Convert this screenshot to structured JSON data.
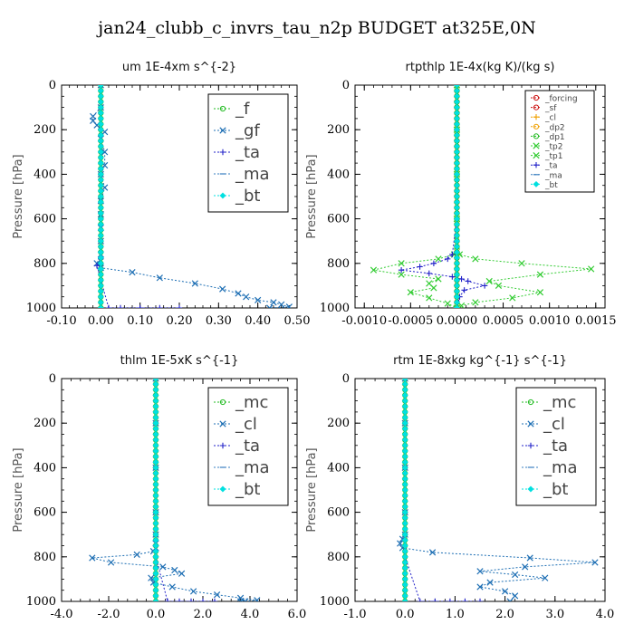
{
  "title": "jan24_clubb_c_invrs_tau_n2p  BUDGET at325E,0N",
  "colors": {
    "green": "#22bb22",
    "blue": "#1e6fb4",
    "dblue": "#2020c8",
    "cyan": "#00e0e0",
    "red": "#cc1111",
    "orange": "#f0a000",
    "lgreen": "#33cc33",
    "steel": "#3a7fc0"
  },
  "chart_data": [
    {
      "type": "line",
      "title": "um   1E-4xm s^{-2}",
      "ylabel": "Pressure [hPa]",
      "xlim": [
        -0.1,
        0.5
      ],
      "ylim": [
        1000,
        0
      ],
      "xticks": [
        "-0.10",
        "0.00",
        "0.10",
        "0.20",
        "0.30",
        "0.40",
        "0.50"
      ],
      "xtick_values": [
        -0.1,
        0,
        0.1,
        0.2,
        0.3,
        0.4,
        0.5
      ],
      "yticks": [
        "0",
        "200",
        "400",
        "600",
        "800",
        "1000"
      ],
      "ytick_values": [
        0,
        200,
        400,
        600,
        800,
        1000
      ],
      "legend_placement": "top-right",
      "legend_size": "large",
      "series": [
        {
          "name": "_f",
          "color": "green",
          "marker": "circle",
          "x": [
            0,
            0,
            0,
            0,
            0,
            0,
            0,
            0,
            0,
            0,
            0
          ],
          "y": [
            0,
            100,
            200,
            300,
            400,
            500,
            600,
            700,
            800,
            900,
            1000
          ]
        },
        {
          "name": "_gf",
          "color": "blue",
          "marker": "x",
          "x": [
            0,
            0,
            -0.02,
            -0.02,
            -0.01,
            0.01,
            0.0,
            0.01,
            0.01,
            0.0,
            0.01,
            0.0,
            0.0,
            0.0,
            0.0,
            0.0,
            -0.01,
            0.0,
            0.08,
            0.15,
            0.24,
            0.31,
            0.35,
            0.37,
            0.4,
            0.44,
            0.46,
            0.48,
            0.43
          ],
          "y": [
            0,
            100,
            140,
            160,
            180,
            210,
            240,
            300,
            360,
            400,
            460,
            520,
            580,
            640,
            700,
            760,
            800,
            820,
            840,
            865,
            890,
            915,
            935,
            950,
            965,
            975,
            985,
            995,
            1000
          ]
        },
        {
          "name": "_ta",
          "color": "dblue",
          "marker": "plus",
          "x": [
            0,
            0,
            0,
            0,
            0,
            0,
            -0.01,
            0.02,
            0.05,
            0.1,
            0.15,
            0.2
          ],
          "y": [
            0,
            200,
            400,
            600,
            780,
            800,
            810,
            1000,
            1000,
            1000,
            1000,
            1000
          ]
        },
        {
          "name": "_ma",
          "color": "steel",
          "marker": "dash",
          "x": [
            0,
            0,
            0,
            0,
            0,
            0
          ],
          "y": [
            0,
            200,
            400,
            600,
            800,
            1000
          ]
        },
        {
          "name": "_bt",
          "color": "cyan",
          "marker": "diamond",
          "x": [
            0,
            0,
            0,
            0,
            0,
            0,
            0,
            0,
            0,
            0,
            0
          ],
          "y": [
            0,
            100,
            200,
            300,
            400,
            500,
            600,
            700,
            800,
            900,
            1000
          ]
        }
      ]
    },
    {
      "type": "line",
      "title": "rtpthlp   1E-4x(kg K)/(kg s)",
      "ylabel": "Pressure [hPa]",
      "xlim": [
        -0.0011,
        0.0016
      ],
      "ylim": [
        1000,
        0
      ],
      "xticks": [
        "-0.0010",
        "-0.0005",
        "0.0000",
        "0.0005",
        "0.0010",
        "0.0015"
      ],
      "xtick_values": [
        -0.001,
        -0.0005,
        0,
        0.0005,
        0.001,
        0.0015
      ],
      "yticks": [
        "0",
        "200",
        "400",
        "600",
        "800",
        "1000"
      ],
      "ytick_values": [
        0,
        200,
        400,
        600,
        800,
        1000
      ],
      "legend_placement": "top-right",
      "legend_size": "small",
      "series": [
        {
          "name": "_forcing",
          "color": "red",
          "marker": "circle",
          "x": [
            0,
            0,
            0,
            0,
            0,
            0
          ],
          "y": [
            0,
            200,
            400,
            600,
            800,
            1000
          ]
        },
        {
          "name": "_sf",
          "color": "red",
          "marker": "circle",
          "x": [
            0,
            0,
            0,
            0,
            0,
            0
          ],
          "y": [
            0,
            200,
            400,
            600,
            800,
            1000
          ]
        },
        {
          "name": "_cl",
          "color": "orange",
          "marker": "plus",
          "x": [
            0,
            0,
            0,
            0,
            0,
            0
          ],
          "y": [
            0,
            200,
            400,
            600,
            800,
            1000
          ]
        },
        {
          "name": "_dp2",
          "color": "orange",
          "marker": "circle",
          "x": [
            0,
            0,
            0,
            0,
            0,
            0
          ],
          "y": [
            0,
            200,
            400,
            600,
            800,
            1000
          ]
        },
        {
          "name": "_dp1",
          "color": "green",
          "marker": "circle",
          "x": [
            0,
            0,
            0,
            0,
            0,
            0
          ],
          "y": [
            0,
            200,
            400,
            600,
            800,
            1000
          ]
        },
        {
          "name": "_tp2",
          "color": "lgreen",
          "marker": "x",
          "x": [
            0,
            0,
            0,
            0,
            3e-05,
            0.0002,
            0.0007,
            0.00145,
            0.0009,
            0.00035,
            0.00045,
            0.0009,
            0.0006,
            0.0002,
            5e-05,
            0
          ],
          "y": [
            0,
            200,
            400,
            600,
            760,
            780,
            800,
            825,
            850,
            880,
            900,
            930,
            955,
            975,
            990,
            1000
          ]
        },
        {
          "name": "_tp1",
          "color": "lgreen",
          "marker": "x",
          "x": [
            0,
            0,
            0,
            0,
            -3e-05,
            -0.0002,
            -0.0006,
            -0.0009,
            -0.0006,
            -0.0002,
            -0.0003,
            -0.00025,
            -0.0005,
            -0.0003,
            -0.0001,
            0
          ],
          "y": [
            0,
            200,
            400,
            600,
            760,
            780,
            800,
            830,
            850,
            870,
            890,
            910,
            930,
            955,
            980,
            1000
          ]
        },
        {
          "name": "_ta",
          "color": "dblue",
          "marker": "plus",
          "x": [
            0,
            0,
            0,
            0,
            -5e-05,
            -0.0001,
            -0.00025,
            -0.0004,
            -0.0006,
            -0.0003,
            -5e-05,
            5e-05,
            0.00012,
            0.0003,
            8e-05,
            3e-05,
            0
          ],
          "y": [
            0,
            200,
            400,
            600,
            760,
            780,
            800,
            815,
            830,
            845,
            860,
            870,
            880,
            900,
            920,
            950,
            1000
          ]
        },
        {
          "name": "_ma",
          "color": "steel",
          "marker": "dash",
          "x": [
            0,
            0,
            0,
            0,
            0,
            0
          ],
          "y": [
            0,
            200,
            400,
            600,
            800,
            1000
          ]
        },
        {
          "name": "_bt",
          "color": "cyan",
          "marker": "diamond",
          "x": [
            0,
            0,
            0,
            0,
            0,
            0
          ],
          "y": [
            0,
            200,
            400,
            600,
            800,
            1000
          ]
        }
      ]
    },
    {
      "type": "line",
      "title": "thlm   1E-5xK s^{-1}",
      "ylabel": "Pressure [hPa]",
      "xlim": [
        -4.0,
        6.0
      ],
      "ylim": [
        1000,
        0
      ],
      "xticks": [
        "-4.0",
        "-2.0",
        "0.0",
        "2.0",
        "4.0",
        "6.0"
      ],
      "xtick_values": [
        -4,
        -2,
        0,
        2,
        4,
        6
      ],
      "yticks": [
        "0",
        "200",
        "400",
        "600",
        "800",
        "1000"
      ],
      "ytick_values": [
        0,
        200,
        400,
        600,
        800,
        1000
      ],
      "legend_placement": "top-right",
      "legend_size": "large",
      "series": [
        {
          "name": "_mc",
          "color": "green",
          "marker": "circle",
          "x": [
            0,
            0,
            0,
            0,
            0,
            0,
            0,
            0,
            0,
            0,
            0
          ],
          "y": [
            0,
            100,
            200,
            300,
            400,
            500,
            600,
            700,
            800,
            900,
            1000
          ]
        },
        {
          "name": "_cl",
          "color": "blue",
          "marker": "x",
          "x": [
            0,
            0,
            0,
            0,
            0,
            0,
            0,
            -0.1,
            -0.8,
            -2.7,
            -1.9,
            0.3,
            0.8,
            1.1,
            -0.2,
            -0.1,
            0.7,
            1.6,
            2.6,
            3.6,
            4.3,
            3.8,
            3.6
          ],
          "y": [
            0,
            200,
            400,
            600,
            700,
            740,
            760,
            775,
            790,
            805,
            825,
            845,
            860,
            875,
            895,
            915,
            935,
            955,
            970,
            985,
            995,
            1000,
            1000
          ]
        },
        {
          "name": "_ta",
          "color": "dblue",
          "marker": "plus",
          "x": [
            0,
            0,
            0,
            0,
            0,
            0.5,
            1.0,
            1.5,
            2.0,
            2.5
          ],
          "y": [
            0,
            200,
            400,
            600,
            800,
            1000,
            1000,
            1000,
            1000,
            1000
          ]
        },
        {
          "name": "_ma",
          "color": "steel",
          "marker": "dash",
          "x": [
            0,
            0,
            0,
            0,
            0,
            0
          ],
          "y": [
            0,
            200,
            400,
            600,
            800,
            1000
          ]
        },
        {
          "name": "_bt",
          "color": "cyan",
          "marker": "diamond",
          "x": [
            0,
            0,
            0,
            0,
            0,
            0,
            0,
            0,
            0,
            0,
            0
          ],
          "y": [
            0,
            100,
            200,
            300,
            400,
            500,
            600,
            700,
            800,
            900,
            1000
          ]
        }
      ]
    },
    {
      "type": "line",
      "title": "rtm   1E-8xkg kg^{-1} s^{-1}",
      "ylabel": "Pressure [hPa]",
      "xlim": [
        -1.0,
        4.0
      ],
      "ylim": [
        1000,
        0
      ],
      "xticks": [
        "-1.0",
        "0.0",
        "1.0",
        "2.0",
        "3.0",
        "4.0"
      ],
      "xtick_values": [
        -1,
        0,
        1,
        2,
        3,
        4
      ],
      "yticks": [
        "0",
        "200",
        "400",
        "600",
        "800",
        "1000"
      ],
      "ytick_values": [
        0,
        200,
        400,
        600,
        800,
        1000
      ],
      "legend_placement": "top-right",
      "legend_size": "large",
      "series": [
        {
          "name": "_mc",
          "color": "green",
          "marker": "circle",
          "x": [
            0,
            0,
            0,
            0,
            0,
            0,
            0,
            0,
            0,
            0,
            0
          ],
          "y": [
            0,
            100,
            200,
            300,
            400,
            500,
            600,
            700,
            800,
            900,
            1000
          ]
        },
        {
          "name": "_cl",
          "color": "blue",
          "marker": "x",
          "x": [
            0,
            0,
            0,
            0,
            0,
            -0.05,
            -0.1,
            -0.05,
            0.55,
            2.5,
            3.8,
            2.4,
            1.5,
            2.2,
            2.8,
            1.7,
            1.5,
            2.0,
            2.2,
            2.1
          ],
          "y": [
            0,
            200,
            400,
            600,
            700,
            720,
            740,
            760,
            780,
            805,
            825,
            845,
            865,
            880,
            895,
            915,
            935,
            955,
            975,
            1000
          ]
        },
        {
          "name": "_ta",
          "color": "dblue",
          "marker": "plus",
          "x": [
            0,
            0,
            0,
            0,
            0,
            0.3,
            0.6,
            0.9,
            1.2,
            1.5
          ],
          "y": [
            0,
            200,
            400,
            600,
            800,
            1000,
            1000,
            1000,
            1000,
            1000
          ]
        },
        {
          "name": "_ma",
          "color": "steel",
          "marker": "dash",
          "x": [
            0,
            0,
            0,
            0,
            0,
            0
          ],
          "y": [
            0,
            200,
            400,
            600,
            800,
            1000
          ]
        },
        {
          "name": "_bt",
          "color": "cyan",
          "marker": "diamond",
          "x": [
            0,
            0,
            0,
            0,
            0,
            0,
            0,
            0,
            0,
            0,
            0
          ],
          "y": [
            0,
            100,
            200,
            300,
            400,
            500,
            600,
            700,
            800,
            900,
            1000
          ]
        }
      ]
    }
  ]
}
